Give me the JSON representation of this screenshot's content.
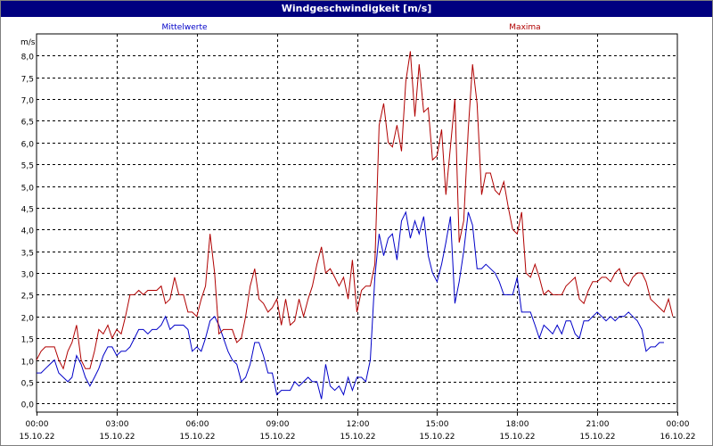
{
  "window": {
    "title": "Windgeschwindigkeit [m/s]"
  },
  "chart_data": {
    "type": "line",
    "title": "Windgeschwindigkeit [m/s]",
    "ylabel": "m/s",
    "ylim": [
      -0.2,
      8.5
    ],
    "grid": true,
    "legend": "top",
    "x_range": [
      "15.10.22 00:00",
      "16.10.22 00:00"
    ],
    "x_unit": "hours since 15.10.22 00:00",
    "yticks": [
      "0,0",
      "0,5",
      "1,0",
      "1,5",
      "2,0",
      "2,5",
      "3,0",
      "3,5",
      "4,0",
      "4,5",
      "5,0",
      "5,5",
      "6,0",
      "6,5",
      "7,0",
      "7,5",
      "8,0"
    ],
    "xticks": [
      {
        "time": "00:00",
        "date": "15.10.22"
      },
      {
        "time": "03:00",
        "date": "15.10.22"
      },
      {
        "time": "06:00",
        "date": "15.10.22"
      },
      {
        "time": "09:00",
        "date": "15.10.22"
      },
      {
        "time": "12:00",
        "date": "15.10.22"
      },
      {
        "time": "15:00",
        "date": "15.10.22"
      },
      {
        "time": "18:00",
        "date": "15.10.22"
      },
      {
        "time": "21:00",
        "date": "15.10.22"
      },
      {
        "time": "00:00",
        "date": "16.10.22"
      }
    ],
    "series": [
      {
        "name": "Mittelwerte",
        "color": "#0000c8",
        "points": [
          [
            0,
            0.7
          ],
          [
            0.17,
            0.7
          ],
          [
            0.33,
            0.8
          ],
          [
            0.5,
            0.9
          ],
          [
            0.67,
            1.0
          ],
          [
            0.83,
            0.7
          ],
          [
            1.0,
            0.6
          ],
          [
            1.17,
            0.5
          ],
          [
            1.33,
            0.6
          ],
          [
            1.5,
            1.1
          ],
          [
            1.67,
            0.9
          ],
          [
            1.83,
            0.6
          ],
          [
            2.0,
            0.4
          ],
          [
            2.17,
            0.6
          ],
          [
            2.33,
            0.8
          ],
          [
            2.5,
            1.1
          ],
          [
            2.67,
            1.3
          ],
          [
            2.83,
            1.3
          ],
          [
            3.0,
            1.1
          ],
          [
            3.17,
            1.2
          ],
          [
            3.33,
            1.2
          ],
          [
            3.5,
            1.3
          ],
          [
            3.67,
            1.5
          ],
          [
            3.83,
            1.7
          ],
          [
            4.0,
            1.7
          ],
          [
            4.17,
            1.6
          ],
          [
            4.33,
            1.7
          ],
          [
            4.5,
            1.7
          ],
          [
            4.67,
            1.8
          ],
          [
            4.83,
            2.0
          ],
          [
            5.0,
            1.7
          ],
          [
            5.17,
            1.8
          ],
          [
            5.33,
            1.8
          ],
          [
            5.5,
            1.8
          ],
          [
            5.67,
            1.7
          ],
          [
            5.83,
            1.2
          ],
          [
            6.0,
            1.3
          ],
          [
            6.17,
            1.2
          ],
          [
            6.33,
            1.5
          ],
          [
            6.5,
            1.9
          ],
          [
            6.67,
            2.0
          ],
          [
            6.83,
            1.8
          ],
          [
            7.0,
            1.5
          ],
          [
            7.17,
            1.2
          ],
          [
            7.33,
            1.0
          ],
          [
            7.5,
            0.9
          ],
          [
            7.67,
            0.5
          ],
          [
            7.83,
            0.6
          ],
          [
            8.0,
            0.9
          ],
          [
            8.17,
            1.4
          ],
          [
            8.33,
            1.4
          ],
          [
            8.5,
            1.1
          ],
          [
            8.67,
            0.7
          ],
          [
            8.83,
            0.7
          ],
          [
            9.0,
            0.2
          ],
          [
            9.17,
            0.3
          ],
          [
            9.33,
            0.3
          ],
          [
            9.5,
            0.3
          ],
          [
            9.67,
            0.5
          ],
          [
            9.83,
            0.4
          ],
          [
            10.0,
            0.5
          ],
          [
            10.17,
            0.6
          ],
          [
            10.33,
            0.5
          ],
          [
            10.5,
            0.5
          ],
          [
            10.67,
            0.1
          ],
          [
            10.83,
            0.9
          ],
          [
            11.0,
            0.4
          ],
          [
            11.17,
            0.3
          ],
          [
            11.33,
            0.4
          ],
          [
            11.5,
            0.2
          ],
          [
            11.67,
            0.6
          ],
          [
            11.83,
            0.3
          ],
          [
            12.0,
            0.6
          ],
          [
            12.17,
            0.6
          ],
          [
            12.33,
            0.5
          ],
          [
            12.5,
            1.0
          ],
          [
            12.67,
            2.9
          ],
          [
            12.83,
            3.9
          ],
          [
            13.0,
            3.4
          ],
          [
            13.17,
            3.8
          ],
          [
            13.33,
            3.9
          ],
          [
            13.5,
            3.3
          ],
          [
            13.67,
            4.2
          ],
          [
            13.83,
            4.4
          ],
          [
            14.0,
            3.8
          ],
          [
            14.17,
            4.2
          ],
          [
            14.33,
            3.9
          ],
          [
            14.5,
            4.3
          ],
          [
            14.67,
            3.4
          ],
          [
            14.83,
            3.0
          ],
          [
            15.0,
            2.8
          ],
          [
            15.17,
            3.2
          ],
          [
            15.33,
            3.7
          ],
          [
            15.5,
            4.3
          ],
          [
            15.67,
            2.3
          ],
          [
            15.83,
            2.8
          ],
          [
            16.0,
            3.5
          ],
          [
            16.17,
            4.4
          ],
          [
            16.33,
            4.1
          ],
          [
            16.5,
            3.1
          ],
          [
            16.67,
            3.1
          ],
          [
            16.83,
            3.2
          ],
          [
            17.0,
            3.1
          ],
          [
            17.17,
            3.0
          ],
          [
            17.33,
            2.8
          ],
          [
            17.5,
            2.5
          ],
          [
            17.67,
            2.5
          ],
          [
            17.83,
            2.5
          ],
          [
            18.0,
            2.9
          ],
          [
            18.17,
            2.1
          ],
          [
            18.33,
            2.1
          ],
          [
            18.5,
            2.1
          ],
          [
            18.67,
            1.8
          ],
          [
            18.83,
            1.5
          ],
          [
            19.0,
            1.8
          ],
          [
            19.17,
            1.7
          ],
          [
            19.33,
            1.6
          ],
          [
            19.5,
            1.8
          ],
          [
            19.67,
            1.6
          ],
          [
            19.83,
            1.9
          ],
          [
            20.0,
            1.9
          ],
          [
            20.17,
            1.6
          ],
          [
            20.33,
            1.5
          ],
          [
            20.5,
            1.9
          ],
          [
            20.67,
            1.9
          ],
          [
            20.83,
            2.0
          ],
          [
            21.0,
            2.1
          ],
          [
            21.17,
            2.0
          ],
          [
            21.33,
            1.9
          ],
          [
            21.5,
            2.0
          ],
          [
            21.67,
            1.9
          ],
          [
            21.83,
            2.0
          ],
          [
            22.0,
            2.0
          ],
          [
            22.17,
            2.1
          ],
          [
            22.33,
            2.0
          ],
          [
            22.5,
            1.9
          ],
          [
            22.67,
            1.7
          ],
          [
            22.83,
            1.2
          ],
          [
            23.0,
            1.3
          ],
          [
            23.17,
            1.3
          ],
          [
            23.33,
            1.4
          ],
          [
            23.5,
            1.4
          ]
        ]
      },
      {
        "name": "Maxima",
        "color": "#b00000",
        "points": [
          [
            0,
            1.0
          ],
          [
            0.17,
            1.2
          ],
          [
            0.33,
            1.3
          ],
          [
            0.5,
            1.3
          ],
          [
            0.67,
            1.3
          ],
          [
            0.83,
            1.0
          ],
          [
            1.0,
            0.8
          ],
          [
            1.17,
            1.2
          ],
          [
            1.33,
            1.4
          ],
          [
            1.5,
            1.8
          ],
          [
            1.67,
            1.0
          ],
          [
            1.83,
            0.8
          ],
          [
            2.0,
            0.8
          ],
          [
            2.17,
            1.2
          ],
          [
            2.33,
            1.7
          ],
          [
            2.5,
            1.6
          ],
          [
            2.67,
            1.8
          ],
          [
            2.83,
            1.5
          ],
          [
            3.0,
            1.7
          ],
          [
            3.17,
            1.6
          ],
          [
            3.33,
            2.0
          ],
          [
            3.5,
            2.5
          ],
          [
            3.67,
            2.5
          ],
          [
            3.83,
            2.6
          ],
          [
            4.0,
            2.5
          ],
          [
            4.17,
            2.6
          ],
          [
            4.33,
            2.6
          ],
          [
            4.5,
            2.6
          ],
          [
            4.67,
            2.7
          ],
          [
            4.83,
            2.3
          ],
          [
            5.0,
            2.4
          ],
          [
            5.17,
            2.9
          ],
          [
            5.33,
            2.5
          ],
          [
            5.5,
            2.5
          ],
          [
            5.67,
            2.1
          ],
          [
            5.83,
            2.1
          ],
          [
            6.0,
            2.0
          ],
          [
            6.17,
            2.4
          ],
          [
            6.33,
            2.7
          ],
          [
            6.5,
            3.9
          ],
          [
            6.67,
            3.0
          ],
          [
            6.83,
            1.6
          ],
          [
            7.0,
            1.7
          ],
          [
            7.17,
            1.7
          ],
          [
            7.33,
            1.7
          ],
          [
            7.5,
            1.4
          ],
          [
            7.67,
            1.5
          ],
          [
            7.83,
            2.0
          ],
          [
            8.0,
            2.7
          ],
          [
            8.17,
            3.1
          ],
          [
            8.33,
            2.4
          ],
          [
            8.5,
            2.3
          ],
          [
            8.67,
            2.1
          ],
          [
            8.83,
            2.2
          ],
          [
            9.0,
            2.4
          ],
          [
            9.17,
            1.8
          ],
          [
            9.33,
            2.4
          ],
          [
            9.5,
            1.8
          ],
          [
            9.67,
            1.9
          ],
          [
            9.83,
            2.4
          ],
          [
            10.0,
            2.0
          ],
          [
            10.17,
            2.4
          ],
          [
            10.33,
            2.7
          ],
          [
            10.5,
            3.2
          ],
          [
            10.67,
            3.6
          ],
          [
            10.83,
            3.0
          ],
          [
            11.0,
            3.1
          ],
          [
            11.17,
            2.9
          ],
          [
            11.33,
            2.7
          ],
          [
            11.5,
            2.9
          ],
          [
            11.67,
            2.4
          ],
          [
            11.83,
            3.3
          ],
          [
            12.0,
            2.1
          ],
          [
            12.17,
            2.6
          ],
          [
            12.33,
            2.7
          ],
          [
            12.5,
            2.7
          ],
          [
            12.67,
            3.2
          ],
          [
            12.83,
            6.4
          ],
          [
            13.0,
            6.9
          ],
          [
            13.17,
            6.0
          ],
          [
            13.33,
            5.9
          ],
          [
            13.5,
            6.4
          ],
          [
            13.67,
            5.8
          ],
          [
            13.83,
            7.4
          ],
          [
            14.0,
            8.1
          ],
          [
            14.17,
            6.6
          ],
          [
            14.33,
            7.8
          ],
          [
            14.5,
            6.7
          ],
          [
            14.67,
            6.8
          ],
          [
            14.83,
            5.6
          ],
          [
            15.0,
            5.7
          ],
          [
            15.17,
            6.3
          ],
          [
            15.33,
            4.8
          ],
          [
            15.5,
            5.9
          ],
          [
            15.67,
            7.0
          ],
          [
            15.83,
            3.7
          ],
          [
            16.0,
            4.2
          ],
          [
            16.17,
            6.3
          ],
          [
            16.33,
            7.8
          ],
          [
            16.5,
            6.9
          ],
          [
            16.67,
            4.8
          ],
          [
            16.83,
            5.3
          ],
          [
            17.0,
            5.3
          ],
          [
            17.17,
            4.9
          ],
          [
            17.33,
            4.8
          ],
          [
            17.5,
            5.1
          ],
          [
            17.67,
            4.5
          ],
          [
            17.83,
            4.0
          ],
          [
            18.0,
            3.9
          ],
          [
            18.17,
            4.4
          ],
          [
            18.33,
            3.0
          ],
          [
            18.5,
            2.9
          ],
          [
            18.67,
            3.2
          ],
          [
            18.83,
            2.9
          ],
          [
            19.0,
            2.5
          ],
          [
            19.17,
            2.6
          ],
          [
            19.33,
            2.5
          ],
          [
            19.5,
            2.5
          ],
          [
            19.67,
            2.5
          ],
          [
            19.83,
            2.7
          ],
          [
            20.0,
            2.8
          ],
          [
            20.17,
            2.9
          ],
          [
            20.33,
            2.4
          ],
          [
            20.5,
            2.3
          ],
          [
            20.67,
            2.6
          ],
          [
            20.83,
            2.8
          ],
          [
            21.0,
            2.8
          ],
          [
            21.17,
            2.9
          ],
          [
            21.33,
            2.9
          ],
          [
            21.5,
            2.8
          ],
          [
            21.67,
            3.0
          ],
          [
            21.83,
            3.1
          ],
          [
            22.0,
            2.8
          ],
          [
            22.17,
            2.7
          ],
          [
            22.33,
            2.9
          ],
          [
            22.5,
            3.0
          ],
          [
            22.67,
            3.0
          ],
          [
            22.83,
            2.8
          ],
          [
            23.0,
            2.4
          ],
          [
            23.17,
            2.3
          ],
          [
            23.33,
            2.2
          ],
          [
            23.5,
            2.1
          ],
          [
            23.67,
            2.4
          ],
          [
            23.83,
            2.0
          ]
        ]
      }
    ]
  }
}
